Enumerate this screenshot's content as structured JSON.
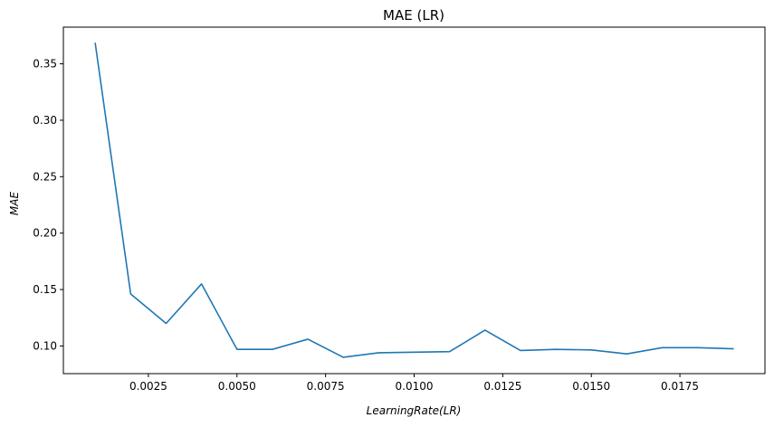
{
  "chart_data": {
    "type": "line",
    "title": "MAE (LR)",
    "xlabel": "LearningRate(LR)",
    "ylabel": "MAE",
    "xlim": [
      0.0001,
      0.0199
    ],
    "ylim": [
      0.0755,
      0.3825
    ],
    "xticks": [
      {
        "value": 0.0025,
        "label": "0.0025"
      },
      {
        "value": 0.005,
        "label": "0.0050"
      },
      {
        "value": 0.0075,
        "label": "0.0075"
      },
      {
        "value": 0.01,
        "label": "0.0100"
      },
      {
        "value": 0.0125,
        "label": "0.0125"
      },
      {
        "value": 0.015,
        "label": "0.0150"
      },
      {
        "value": 0.0175,
        "label": "0.0175"
      }
    ],
    "yticks": [
      {
        "value": 0.1,
        "label": "0.10"
      },
      {
        "value": 0.15,
        "label": "0.15"
      },
      {
        "value": 0.2,
        "label": "0.20"
      },
      {
        "value": 0.25,
        "label": "0.25"
      },
      {
        "value": 0.3,
        "label": "0.30"
      },
      {
        "value": 0.35,
        "label": "0.35"
      }
    ],
    "grid": false,
    "series": [
      {
        "color": "#1f77b4",
        "x": [
          0.001,
          0.002,
          0.003,
          0.004,
          0.005,
          0.006,
          0.007,
          0.008,
          0.009,
          0.01,
          0.011,
          0.012,
          0.013,
          0.014,
          0.015,
          0.016,
          0.017,
          0.018,
          0.019
        ],
        "y": [
          0.368,
          0.146,
          0.12,
          0.155,
          0.097,
          0.097,
          0.106,
          0.09,
          0.094,
          0.0945,
          0.095,
          0.114,
          0.096,
          0.097,
          0.0965,
          0.093,
          0.0985,
          0.0985,
          0.0975
        ]
      }
    ]
  }
}
